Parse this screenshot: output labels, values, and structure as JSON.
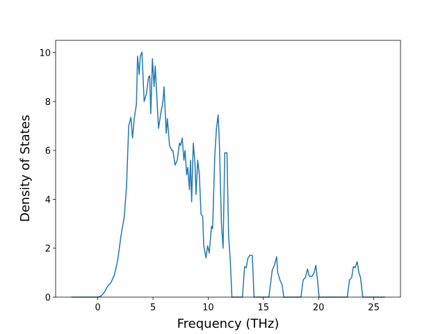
{
  "chart_data": {
    "type": "line",
    "x_label": "Frequency (THz)",
    "y_label": "Density of States",
    "x": [
      -2.4,
      0,
      0.3,
      0.6,
      0.9,
      1.2,
      1.5,
      1.8,
      2.1,
      2.4,
      2.6,
      2.8,
      3.0,
      3.15,
      3.3,
      3.5,
      3.6,
      3.75,
      3.85,
      4.0,
      4.2,
      4.4,
      4.6,
      4.7,
      4.8,
      4.95,
      5.1,
      5.2,
      5.35,
      5.5,
      5.7,
      5.9,
      6.0,
      6.2,
      6.3,
      6.5,
      6.7,
      6.8,
      7.0,
      7.2,
      7.4,
      7.5,
      7.65,
      7.8,
      7.9,
      8.05,
      8.15,
      8.3,
      8.4,
      8.5,
      8.65,
      8.8,
      8.9,
      9.05,
      9.2,
      9.35,
      9.5,
      9.6,
      9.8,
      9.95,
      10.1,
      10.3,
      10.4,
      10.6,
      10.75,
      10.9,
      11.0,
      11.2,
      11.35,
      11.5,
      11.7,
      11.85,
      12.0,
      12.15,
      13.1,
      13.3,
      13.45,
      13.6,
      13.8,
      14.0,
      14.15,
      15.5,
      15.8,
      16.0,
      16.2,
      16.3,
      16.5,
      16.7,
      16.85,
      18.4,
      18.6,
      18.8,
      19.0,
      19.15,
      19.4,
      19.6,
      19.75,
      19.9,
      20.05,
      22.6,
      22.8,
      23.0,
      23.15,
      23.3,
      23.5,
      23.65,
      23.8,
      24.0,
      26.0
    ],
    "values": [
      0,
      0,
      0.05,
      0.2,
      0.45,
      0.6,
      0.9,
      1.5,
      2.5,
      3.3,
      4.5,
      7.0,
      7.35,
      6.5,
      7.3,
      7.9,
      9.85,
      9.1,
      9.85,
      10.02,
      8.0,
      8.3,
      9.0,
      9.05,
      7.5,
      9.75,
      8.6,
      9.45,
      8.2,
      6.9,
      7.5,
      8.0,
      8.6,
      6.7,
      7.3,
      6.2,
      6.0,
      6.0,
      5.4,
      5.6,
      6.3,
      6.2,
      6.5,
      5.6,
      6.0,
      5.0,
      5.3,
      4.4,
      5.6,
      3.9,
      6.3,
      5.5,
      4.2,
      5.6,
      5.0,
      3.4,
      3.3,
      2.1,
      1.6,
      2.1,
      1.8,
      2.9,
      2.8,
      5.8,
      6.9,
      7.45,
      6.5,
      3.0,
      2.0,
      5.9,
      5.9,
      2.5,
      1.5,
      0,
      0,
      1.25,
      1.2,
      1.6,
      1.72,
      1.7,
      0,
      0,
      1.1,
      1.3,
      1.65,
      1.0,
      0.7,
      0.5,
      0,
      0,
      0.7,
      0.8,
      1.15,
      0.85,
      0.85,
      1.0,
      1.3,
      0.7,
      0,
      0,
      0.7,
      0.8,
      1.25,
      1.2,
      1.45,
      1.0,
      0.8,
      0,
      0
    ],
    "color": "#1f77b4",
    "xlim": [
      -3.82,
      27.42
    ],
    "xticks": [
      0,
      5,
      10,
      15,
      20,
      25
    ],
    "ylim": [
      0,
      10.5
    ],
    "yticks": [
      0,
      2,
      4,
      6,
      8,
      10
    ]
  }
}
